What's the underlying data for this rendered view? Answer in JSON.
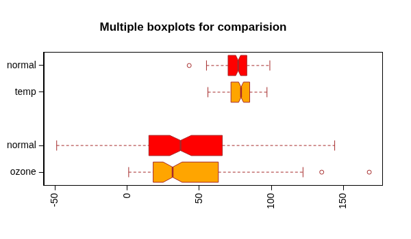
{
  "chart_data": {
    "type": "boxplot",
    "title": "Multiple boxplots for comparision",
    "orientation": "horizontal",
    "categories": [
      "normal",
      "temp",
      null,
      "normal",
      "ozone"
    ],
    "colors": [
      "#ff0000",
      "#ffa500",
      null,
      "#ff0000",
      "#ffa500"
    ],
    "values": [
      {
        "min": 55,
        "q1": 70,
        "median": 77,
        "q3": 83,
        "max": 99,
        "notch": [
          75.3,
          78.7
        ],
        "outliers": [
          43
        ]
      },
      {
        "min": 56,
        "q1": 72,
        "median": 79,
        "q3": 85,
        "max": 97,
        "notch": [
          77.3,
          80.7
        ],
        "outliers": []
      },
      null,
      {
        "min": -49,
        "q1": 15,
        "median": 37,
        "q3": 66,
        "max": 144,
        "notch": [
          29.5,
          44.5
        ],
        "outliers": []
      },
      {
        "min": 1,
        "q1": 18,
        "median": 31.5,
        "q3": 63.25,
        "max": 122,
        "notch": [
          24.9,
          38.1
        ],
        "outliers": [
          135,
          168
        ]
      }
    ],
    "xlim": [
      -58,
      177
    ],
    "xticks": [
      -50,
      0,
      50,
      100,
      150
    ],
    "grid": false,
    "line_style": "dashed",
    "marker": "circle"
  }
}
